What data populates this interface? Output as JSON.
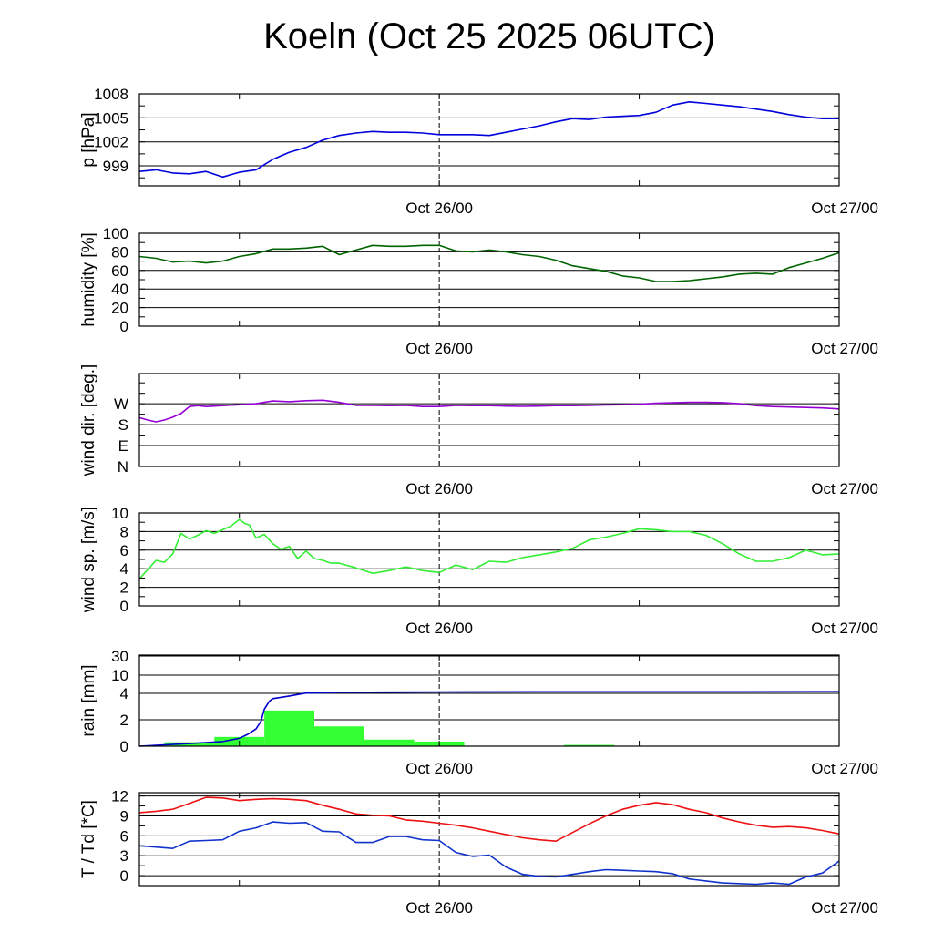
{
  "title": "Koeln (Oct 25 2025 06UTC)",
  "colors": {
    "pressure": "#0000dd",
    "humidity": "#006400",
    "wind_dir": "#9400d3",
    "wind_speed": "#33ee33",
    "rain_total": "#0000cc",
    "rain_bars": "#33ff33",
    "temperature": "#ee1111",
    "dewpoint": "#1133cc"
  },
  "chart_data": [
    {
      "type": "line",
      "id": "pressure",
      "ylabel": "p [hPa]",
      "ylim": [
        996.5,
        1008
      ],
      "yticks": [
        999,
        1002,
        1005,
        1008
      ],
      "ytick_labels": [
        "999",
        "1002",
        "1005",
        "1008"
      ],
      "xlim": [
        0,
        42
      ],
      "xticks": [
        18,
        42
      ],
      "xtick_labels": [
        "Oct 26/00",
        "Oct 27/00"
      ],
      "minor_xticks": [
        6,
        30
      ],
      "vline_at": 18,
      "series": [
        {
          "name": "pressure",
          "x": [
            0,
            1,
            2,
            3,
            4,
            5,
            6,
            7,
            8,
            9,
            10,
            11,
            12,
            13,
            14,
            15,
            16,
            17,
            18,
            19,
            20,
            21,
            22,
            23,
            24,
            25,
            26,
            27,
            28,
            29,
            30,
            31,
            32,
            33,
            34,
            35,
            36,
            37,
            38,
            39,
            40,
            41,
            42
          ],
          "values": [
            998.3,
            998.5,
            998.1,
            998.0,
            998.3,
            997.6,
            998.2,
            998.5,
            999.8,
            1000.7,
            1001.3,
            1002.2,
            1002.8,
            1003.1,
            1003.3,
            1003.2,
            1003.2,
            1003.1,
            1002.9,
            1002.9,
            1002.9,
            1002.8,
            1003.2,
            1003.6,
            1004.0,
            1004.5,
            1004.9,
            1004.8,
            1005.1,
            1005.2,
            1005.3,
            1005.7,
            1006.6,
            1007.0,
            1006.8,
            1006.6,
            1006.4,
            1006.1,
            1005.8,
            1005.4,
            1005.1,
            1004.9,
            1004.9
          ]
        }
      ]
    },
    {
      "type": "line",
      "id": "humidity",
      "ylabel": "humidity [%]",
      "ylim": [
        0,
        100
      ],
      "yticks": [
        0,
        20,
        40,
        60,
        80,
        100
      ],
      "ytick_labels": [
        "0",
        "20",
        "40",
        "60",
        "80",
        "100"
      ],
      "xlim": [
        0,
        42
      ],
      "xticks": [
        18,
        42
      ],
      "xtick_labels": [
        "Oct 26/00",
        "Oct 27/00"
      ],
      "minor_xticks": [
        6,
        30
      ],
      "vline_at": 18,
      "series": [
        {
          "name": "humidity",
          "x": [
            0,
            1,
            2,
            3,
            4,
            5,
            6,
            7,
            8,
            9,
            10,
            11,
            12,
            13,
            14,
            15,
            16,
            17,
            18,
            19,
            20,
            21,
            22,
            23,
            24,
            25,
            26,
            27,
            28,
            29,
            30,
            31,
            32,
            33,
            34,
            35,
            36,
            37,
            38,
            39,
            40,
            41,
            42
          ],
          "values": [
            75,
            73,
            69,
            70,
            68,
            70,
            75,
            78,
            83,
            83,
            84,
            86,
            77,
            82,
            87,
            86,
            86,
            87,
            87,
            81,
            80,
            82,
            80,
            77,
            75,
            71,
            65,
            62,
            59,
            54,
            52,
            48,
            48,
            49,
            51,
            53,
            56,
            57,
            56,
            63,
            68,
            73,
            79
          ]
        }
      ]
    },
    {
      "type": "line",
      "id": "wind_dir",
      "ylabel": "wind dir. [deg.]",
      "ylim": [
        0,
        400
      ],
      "yticks": [
        0,
        90,
        180,
        270
      ],
      "ytick_labels": [
        "N",
        "E",
        "S",
        "W"
      ],
      "xlim": [
        0,
        42
      ],
      "xticks": [
        18,
        42
      ],
      "xtick_labels": [
        "Oct 26/00",
        "Oct 27/00"
      ],
      "minor_xticks": [
        6,
        30
      ],
      "vline_at": 18,
      "series": [
        {
          "name": "wind direction",
          "x": [
            0,
            0.5,
            1,
            1.5,
            2,
            2.5,
            3,
            3.5,
            4,
            5,
            6,
            7,
            8,
            9,
            10,
            11,
            12,
            13,
            14,
            15,
            16,
            17,
            18,
            19,
            20,
            21,
            22,
            23,
            24,
            25,
            26,
            27,
            28,
            29,
            30,
            31,
            32,
            33,
            34,
            35,
            36,
            37,
            38,
            39,
            40,
            41,
            42
          ],
          "values": [
            210,
            200,
            192,
            200,
            212,
            228,
            258,
            262,
            258,
            262,
            266,
            270,
            282,
            279,
            283,
            285,
            276,
            263,
            263,
            262,
            263,
            258,
            258,
            263,
            262,
            262,
            260,
            259,
            260,
            262,
            262,
            263,
            265,
            266,
            268,
            272,
            274,
            276,
            276,
            275,
            270,
            262,
            258,
            256,
            254,
            252,
            248
          ]
        }
      ]
    },
    {
      "type": "line",
      "id": "wind_speed",
      "ylabel": "wind sp. [m/s]",
      "ylim": [
        0,
        10
      ],
      "yticks": [
        0,
        2,
        4,
        6,
        8,
        10
      ],
      "ytick_labels": [
        "0",
        "2",
        "4",
        "6",
        "8",
        "10"
      ],
      "xlim": [
        0,
        42
      ],
      "xticks": [
        18,
        42
      ],
      "xtick_labels": [
        "Oct 26/00",
        "Oct 27/00"
      ],
      "minor_xticks": [
        6,
        30
      ],
      "vline_at": 18,
      "series": [
        {
          "name": "wind speed",
          "x": [
            0,
            0.5,
            1,
            1.5,
            2,
            2.5,
            3,
            3.5,
            4,
            4.5,
            5,
            5.5,
            6,
            6.3,
            6.6,
            7,
            7.5,
            8,
            8.5,
            9,
            9.5,
            10,
            10.5,
            11,
            11.5,
            12,
            13,
            14,
            15,
            16,
            17,
            18,
            19,
            20,
            21,
            22,
            23,
            24,
            25,
            26,
            27,
            28,
            29,
            30,
            31,
            32,
            33,
            34,
            35,
            36,
            37,
            38,
            39,
            40,
            41,
            42
          ],
          "values": [
            2.9,
            3.9,
            4.9,
            4.7,
            5.6,
            7.8,
            7.2,
            7.6,
            8.1,
            7.8,
            8.2,
            8.6,
            9.3,
            8.9,
            8.7,
            7.3,
            7.7,
            6.7,
            6.1,
            6.4,
            5.1,
            5.9,
            5.1,
            4.9,
            4.6,
            4.6,
            4.1,
            3.5,
            3.8,
            4.2,
            3.8,
            3.6,
            4.4,
            3.9,
            4.8,
            4.7,
            5.2,
            5.5,
            5.8,
            6.2,
            7.1,
            7.4,
            7.8,
            8.3,
            8.2,
            8.0,
            8.0,
            7.6,
            6.7,
            5.6,
            4.8,
            4.8,
            5.2,
            6.0,
            5.5,
            5.6
          ]
        }
      ]
    },
    {
      "type": "bar",
      "id": "rain",
      "ylabel": "rain [mm]",
      "scale": "nonlinear",
      "ylim": [
        0,
        30
      ],
      "yticks": [
        0,
        2,
        4,
        10,
        30
      ],
      "ytick_labels": [
        "0",
        "2",
        "4",
        "10",
        "30"
      ],
      "xlim": [
        0,
        42
      ],
      "xticks": [
        18,
        42
      ],
      "xtick_labels": [
        "Oct 26/00",
        "Oct 27/00"
      ],
      "minor_xticks": [
        6,
        30
      ],
      "vline_at": 18,
      "bars": [
        {
          "x0": 1.5,
          "x1": 4.5,
          "value": 0.3
        },
        {
          "x0": 4.5,
          "x1": 7.5,
          "value": 0.7
        },
        {
          "x0": 7.5,
          "x1": 10.5,
          "value": 2.7
        },
        {
          "x0": 10.5,
          "x1": 13.5,
          "value": 1.5
        },
        {
          "x0": 13.5,
          "x1": 16.5,
          "value": 0.5
        },
        {
          "x0": 16.5,
          "x1": 19.5,
          "value": 0.35
        },
        {
          "x0": 25.5,
          "x1": 28.5,
          "value": 0.1
        }
      ],
      "series": [
        {
          "name": "accumulated rain",
          "x": [
            0,
            3,
            5,
            6,
            6.5,
            7,
            7.3,
            7.5,
            7.8,
            8,
            9,
            10,
            12,
            15,
            18,
            24,
            30,
            36,
            42
          ],
          "values": [
            0,
            0.2,
            0.35,
            0.6,
            0.9,
            1.3,
            1.9,
            2.8,
            3.4,
            3.6,
            3.8,
            4.1,
            4.3,
            4.4,
            4.45,
            4.5,
            4.5,
            4.5,
            4.55
          ]
        }
      ]
    },
    {
      "type": "line",
      "id": "temperature",
      "ylabel": "T / Td [*C]",
      "ylim": [
        -1.5,
        12.5
      ],
      "yticks": [
        0,
        3,
        6,
        9,
        12
      ],
      "ytick_labels": [
        "0",
        "3",
        "6",
        "9",
        "12"
      ],
      "xlim": [
        0,
        42
      ],
      "xticks": [
        18,
        42
      ],
      "xtick_labels": [
        "Oct 26/00",
        "Oct 27/00"
      ],
      "minor_xticks": [
        6,
        30
      ],
      "vline_at": 18,
      "series": [
        {
          "name": "T",
          "x": [
            0,
            1,
            2,
            3,
            4,
            5,
            6,
            7,
            8,
            9,
            10,
            11,
            12,
            13,
            14,
            15,
            16,
            17,
            18,
            19,
            20,
            21,
            22,
            23,
            24,
            25,
            26,
            27,
            28,
            29,
            30,
            31,
            32,
            33,
            34,
            35,
            36,
            37,
            38,
            39,
            40,
            41,
            42
          ],
          "values": [
            9.5,
            9.7,
            10.0,
            10.9,
            11.8,
            11.7,
            11.3,
            11.5,
            11.6,
            11.5,
            11.3,
            10.6,
            10.0,
            9.3,
            9.1,
            9.0,
            8.4,
            8.2,
            7.9,
            7.6,
            7.2,
            6.7,
            6.2,
            5.7,
            5.4,
            5.2,
            6.5,
            7.8,
            9.0,
            10.0,
            10.6,
            11.0,
            10.7,
            10.0,
            9.5,
            8.7,
            8.1,
            7.6,
            7.3,
            7.4,
            7.2,
            6.8,
            6.3
          ]
        },
        {
          "name": "Td",
          "x": [
            0,
            1,
            2,
            3,
            4,
            5,
            6,
            7,
            8,
            9,
            10,
            11,
            12,
            13,
            14,
            15,
            16,
            17,
            18,
            19,
            20,
            21,
            22,
            23,
            24,
            25,
            26,
            27,
            28,
            29,
            30,
            31,
            32,
            33,
            34,
            35,
            36,
            37,
            38,
            39,
            40,
            41,
            42
          ],
          "values": [
            4.5,
            4.3,
            4.1,
            5.2,
            5.3,
            5.4,
            6.7,
            7.2,
            8.1,
            7.9,
            8.0,
            6.7,
            6.6,
            5.0,
            5.0,
            5.9,
            5.9,
            5.4,
            5.3,
            3.5,
            2.9,
            3.1,
            1.3,
            0.2,
            -0.1,
            -0.2,
            0.2,
            0.6,
            0.9,
            0.8,
            0.7,
            0.6,
            0.3,
            -0.5,
            -0.8,
            -1.1,
            -1.2,
            -1.3,
            -1.1,
            -1.3,
            -0.2,
            0.4,
            2.2
          ]
        }
      ]
    }
  ]
}
